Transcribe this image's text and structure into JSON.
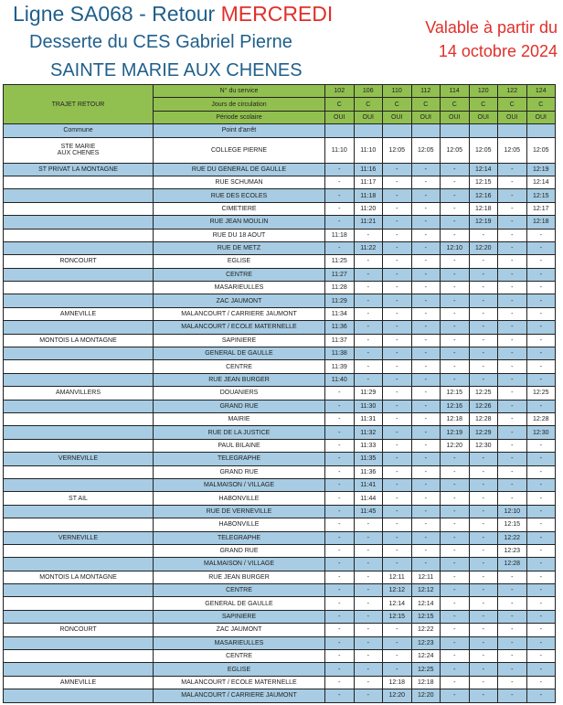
{
  "title": {
    "prefix": "Ligne SA068 - Retour ",
    "day": "MERCREDI",
    "line2": "Desserte du CES Gabriel Pierne",
    "line3": "SAINTE MARIE AUX CHENES"
  },
  "validity": {
    "line1": "Valable à partir du",
    "line2": "14 octobre 2024"
  },
  "colors": {
    "title_blue": "#1f5f8b",
    "red": "#e0302a",
    "header_green": "#92c050",
    "row_blue": "#a7cce3"
  },
  "header": {
    "trajet": "TRAJET RETOUR",
    "service_label": "N° du service",
    "days_label": "Jours de circulation",
    "period_label": "Période scolaire",
    "services": [
      "102",
      "106",
      "110",
      "112",
      "114",
      "120",
      "122",
      "124"
    ],
    "days": [
      "C",
      "C",
      "C",
      "C",
      "C",
      "C",
      "C",
      "C"
    ],
    "period": [
      "OUI",
      "OUI",
      "OUI",
      "OUI",
      "OUI",
      "OUI",
      "OUI",
      "OUI"
    ],
    "commune_label": "Commune",
    "stop_label": "Point d'arrêt"
  },
  "first_row": {
    "commune_l1": "STE MARIE",
    "commune_l2": "AUX CHENES",
    "stop": "COLLEGE PIERNE",
    "times": [
      "11:10",
      "11:10",
      "12:05",
      "12:05",
      "12:05",
      "12:05",
      "12:05",
      "12:05"
    ]
  },
  "rows": [
    {
      "commune": "ST PRIVAT LA MONTAGNE",
      "stop": "RUE DU GENERAL DE GAULLE",
      "times": [
        "-",
        "11:16",
        "-",
        "-",
        "-",
        "12:14",
        "-",
        "12:19"
      ]
    },
    {
      "commune": "",
      "stop": "RUE SCHUMAN",
      "times": [
        "-",
        "11:17",
        "-",
        "-",
        "-",
        "12:15",
        "-",
        "12:14"
      ]
    },
    {
      "commune": "",
      "stop": "RUE DES ECOLES",
      "times": [
        "-",
        "11:18",
        "-",
        "-",
        "-",
        "12:16",
        "-",
        "12:15"
      ]
    },
    {
      "commune": "",
      "stop": "CIMETIERE",
      "times": [
        "-",
        "11:20",
        "-",
        "-",
        "-",
        "12:18",
        "-",
        "12:17"
      ]
    },
    {
      "commune": "",
      "stop": "RUE JEAN MOULIN",
      "times": [
        "-",
        "11:21",
        "-",
        "-",
        "-",
        "12:19",
        "-",
        "12:18"
      ]
    },
    {
      "commune": "",
      "stop": "RUE DU 18 AOUT",
      "times": [
        "11:18",
        "-",
        "-",
        "-",
        "-",
        "-",
        "-",
        "-"
      ]
    },
    {
      "commune": "",
      "stop": "RUE DE METZ",
      "times": [
        "-",
        "11:22",
        "-",
        "-",
        "12:10",
        "12:20",
        "-",
        "-"
      ]
    },
    {
      "commune": "RONCOURT",
      "stop": "EGLISE",
      "times": [
        "11:25",
        "-",
        "-",
        "-",
        "-",
        "-",
        "-",
        "-"
      ]
    },
    {
      "commune": "",
      "stop": "CENTRE",
      "times": [
        "11:27",
        "-",
        "-",
        "-",
        "-",
        "-",
        "-",
        "-"
      ]
    },
    {
      "commune": "",
      "stop": "MASARIEULLES",
      "times": [
        "11:28",
        "-",
        "-",
        "-",
        "-",
        "-",
        "-",
        "-"
      ]
    },
    {
      "commune": "",
      "stop": "ZAC JAUMONT",
      "times": [
        "11:29",
        "-",
        "-",
        "-",
        "-",
        "-",
        "-",
        "-"
      ]
    },
    {
      "commune": "AMNEVILLE",
      "stop": "MALANCOURT / CARRIERE JAUMONT",
      "times": [
        "11:34",
        "-",
        "-",
        "-",
        "-",
        "-",
        "-",
        "-"
      ]
    },
    {
      "commune": "",
      "stop": "MALANCOURT / ECOLE MATERNELLE",
      "times": [
        "11:36",
        "-",
        "-",
        "-",
        "-",
        "-",
        "-",
        "-"
      ]
    },
    {
      "commune": "MONTOIS LA MONTAGNE",
      "stop": "SAPINIERE",
      "times": [
        "11:37",
        "-",
        "-",
        "-",
        "-",
        "-",
        "-",
        "-"
      ]
    },
    {
      "commune": "",
      "stop": "GENERAL DE GAULLE",
      "times": [
        "11:38",
        "-",
        "-",
        "-",
        "-",
        "-",
        "-",
        "-"
      ]
    },
    {
      "commune": "",
      "stop": "CENTRE",
      "times": [
        "11:39",
        "-",
        "-",
        "-",
        "-",
        "-",
        "-",
        "-"
      ]
    },
    {
      "commune": "",
      "stop": "RUE JEAN BURGER",
      "times": [
        "11:40",
        "-",
        "-",
        "-",
        "-",
        "-",
        "-",
        "-"
      ]
    },
    {
      "commune": "AMANVILLERS",
      "stop": "DOUANIERS",
      "times": [
        "-",
        "11:29",
        "-",
        "-",
        "12:15",
        "12:25",
        "-",
        "12:25"
      ]
    },
    {
      "commune": "",
      "stop": "GRAND RUE",
      "times": [
        "-",
        "11:30",
        "-",
        "-",
        "12:16",
        "12:26",
        "-",
        "-"
      ]
    },
    {
      "commune": "",
      "stop": "MAIRIE",
      "times": [
        "-",
        "11:31",
        "-",
        "-",
        "12:18",
        "12:28",
        "-",
        "12:28"
      ]
    },
    {
      "commune": "",
      "stop": "RUE DE LA JUSTICE",
      "times": [
        "-",
        "11:32",
        "-",
        "-",
        "12:19",
        "12:29",
        "-",
        "12:30"
      ]
    },
    {
      "commune": "",
      "stop": "PAUL BILAINE",
      "times": [
        "-",
        "11:33",
        "-",
        "-",
        "12:20",
        "12:30",
        "-",
        "-"
      ]
    },
    {
      "commune": "VERNEVILLE",
      "stop": "TELEGRAPHE",
      "times": [
        "-",
        "11:35",
        "-",
        "-",
        "-",
        "-",
        "-",
        "-"
      ]
    },
    {
      "commune": "",
      "stop": "GRAND RUE",
      "times": [
        "-",
        "11:36",
        "-",
        "-",
        "-",
        "-",
        "-",
        "-"
      ]
    },
    {
      "commune": "",
      "stop": "MALMAISON / VILLAGE",
      "times": [
        "-",
        "11:41",
        "-",
        "-",
        "-",
        "-",
        "-",
        "-"
      ]
    },
    {
      "commune": "ST AIL",
      "stop": "HABONVILLE",
      "times": [
        "-",
        "11:44",
        "-",
        "-",
        "-",
        "-",
        "-",
        "-"
      ]
    },
    {
      "commune": "",
      "stop": "RUE DE VERNEVILLE",
      "times": [
        "-",
        "11:45",
        "-",
        "-",
        "-",
        "-",
        "12:10",
        "-"
      ]
    },
    {
      "commune": "",
      "stop": "HABONVILLE",
      "times": [
        "-",
        "-",
        "-",
        "-",
        "-",
        "-",
        "12:15",
        "-"
      ]
    },
    {
      "commune": "VERNEVILLE",
      "stop": "TELEGRAPHE",
      "times": [
        "-",
        "-",
        "-",
        "-",
        "-",
        "-",
        "12:22",
        "-"
      ]
    },
    {
      "commune": "",
      "stop": "GRAND RUE",
      "times": [
        "-",
        "-",
        "-",
        "-",
        "-",
        "-",
        "12:23",
        "-"
      ]
    },
    {
      "commune": "",
      "stop": "MALMAISON / VILLAGE",
      "times": [
        "-",
        "-",
        "-",
        "-",
        "-",
        "-",
        "12:28",
        "-"
      ]
    },
    {
      "commune": "MONTOIS LA MONTAGNE",
      "stop": "RUE JEAN BURGER",
      "times": [
        "-",
        "-",
        "12:11",
        "12:11",
        "-",
        "-",
        "-",
        "-"
      ]
    },
    {
      "commune": "",
      "stop": "CENTRE",
      "times": [
        "-",
        "-",
        "12:12",
        "12:12",
        "-",
        "-",
        "-",
        "-"
      ]
    },
    {
      "commune": "",
      "stop": "GENERAL DE GAULLE",
      "times": [
        "-",
        "-",
        "12:14",
        "12:14",
        "-",
        "-",
        "-",
        "-"
      ]
    },
    {
      "commune": "",
      "stop": "SAPINIERE",
      "times": [
        "-",
        "-",
        "12:15",
        "12:15",
        "-",
        "-",
        "-",
        "-"
      ]
    },
    {
      "commune": "RONCOURT",
      "stop": "ZAC JAUMONT",
      "times": [
        "-",
        "-",
        "-",
        "12:22",
        "-",
        "-",
        "-",
        "-"
      ]
    },
    {
      "commune": "",
      "stop": "MASARIEULLES",
      "times": [
        "-",
        "-",
        "-",
        "12:23",
        "-",
        "-",
        "-",
        "-"
      ]
    },
    {
      "commune": "",
      "stop": "CENTRE",
      "times": [
        "-",
        "-",
        "-",
        "12:24",
        "-",
        "-",
        "-",
        "-"
      ]
    },
    {
      "commune": "",
      "stop": "EGLISE",
      "times": [
        "-",
        "-",
        "-",
        "12:25",
        "-",
        "-",
        "-",
        "-"
      ]
    },
    {
      "commune": "AMNEVILLE",
      "stop": "MALANCOURT / ECOLE MATERNELLE",
      "times": [
        "-",
        "-",
        "12:18",
        "12:18",
        "-",
        "-",
        "-",
        "-"
      ]
    },
    {
      "commune": "",
      "stop": "MALANCOURT / CARRIERE JAUMONT",
      "times": [
        "-",
        "-",
        "12:20",
        "12:20",
        "-",
        "-",
        "-",
        "-"
      ]
    }
  ]
}
